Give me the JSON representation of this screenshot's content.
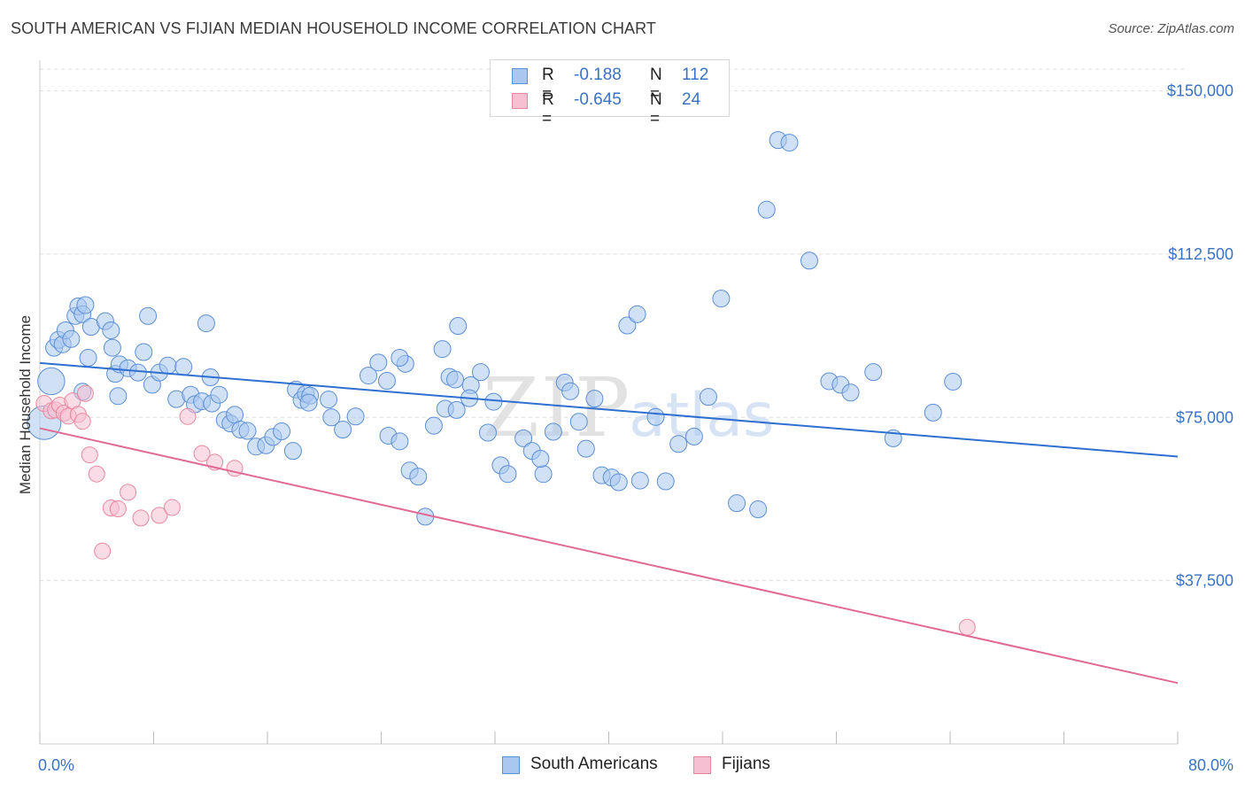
{
  "title": "SOUTH AMERICAN VS FIJIAN MEDIAN HOUSEHOLD INCOME CORRELATION CHART",
  "source": "Source: ZipAtlas.com",
  "legend": {
    "rows": [
      {
        "r_label": "R =",
        "r_value": "-0.188",
        "n_label": "N =",
        "n_value": "112"
      },
      {
        "r_label": "R =",
        "r_value": "-0.645",
        "n_label": "N =",
        "n_value": "24"
      }
    ]
  },
  "bottom_legend": {
    "south": "South Americans",
    "fiji": "Fijians"
  },
  "colors": {
    "south_fill": "#aac8ef",
    "south_stroke": "#5b8fd6",
    "south_line": "#2f6fd0",
    "fiji_fill": "#f6bfd2",
    "fiji_stroke": "#e8879f",
    "fiji_line": "#e06a94",
    "tick_text": "#3a72c4",
    "grid": "#dcdcdc"
  },
  "chart_data": {
    "type": "scatter",
    "xlabel": "",
    "ylabel": "Median Household Income",
    "xlim": [
      0,
      80
    ],
    "ylim": [
      0,
      155000
    ],
    "x_tick_labels": [
      "0.0%",
      "80.0%"
    ],
    "y_ticks": [
      37500,
      75000,
      112500,
      150000
    ],
    "y_tick_labels": [
      "$37,500",
      "$75,000",
      "$112,500",
      "$150,000"
    ],
    "grid": true,
    "legend_position": "top-center",
    "series": [
      {
        "name": "South Americans",
        "trend": {
          "x": [
            0,
            80
          ],
          "y": [
            87500,
            66000
          ]
        },
        "points": [
          [
            0.3,
            73800,
            2.0
          ],
          [
            0.8,
            83300,
            1.6
          ],
          [
            1.0,
            91000,
            1.0
          ],
          [
            1.3,
            92800,
            1.0
          ],
          [
            1.6,
            91800,
            1.0
          ],
          [
            1.8,
            95000,
            1.0
          ],
          [
            2.2,
            93000,
            1.0
          ],
          [
            2.5,
            98300,
            1.0
          ],
          [
            2.7,
            100500,
            1.0
          ],
          [
            3.0,
            98700,
            1.0
          ],
          [
            3.2,
            100800,
            1.0
          ],
          [
            3.6,
            95800,
            1.0
          ],
          [
            3.0,
            80900,
            1.0
          ],
          [
            3.4,
            88700,
            1.0
          ],
          [
            5.3,
            85000,
            1.0
          ],
          [
            5.6,
            87200,
            1.0
          ],
          [
            5.5,
            79900,
            1.0
          ],
          [
            4.6,
            97100,
            1.0
          ],
          [
            5.0,
            95000,
            1.0
          ],
          [
            5.1,
            91000,
            1.0
          ],
          [
            6.2,
            86300,
            1.0
          ],
          [
            6.9,
            85300,
            1.0
          ],
          [
            7.3,
            90000,
            1.0
          ],
          [
            7.6,
            98300,
            1.0
          ],
          [
            7.9,
            82500,
            1.0
          ],
          [
            8.4,
            85300,
            1.0
          ],
          [
            9.0,
            86900,
            1.0
          ],
          [
            9.6,
            79200,
            1.0
          ],
          [
            10.1,
            86600,
            1.0
          ],
          [
            10.6,
            80200,
            1.0
          ],
          [
            10.9,
            78000,
            1.0
          ],
          [
            11.4,
            78700,
            1.0
          ],
          [
            11.7,
            96600,
            1.0
          ],
          [
            12.0,
            84200,
            1.0
          ],
          [
            12.1,
            78200,
            1.0
          ],
          [
            12.6,
            80200,
            1.0
          ],
          [
            13.0,
            74400,
            1.0
          ],
          [
            13.4,
            73600,
            1.0
          ],
          [
            13.7,
            75600,
            1.0
          ],
          [
            14.1,
            72200,
            1.0
          ],
          [
            14.6,
            71900,
            1.0
          ],
          [
            15.2,
            68300,
            1.0
          ],
          [
            15.9,
            68600,
            1.0
          ],
          [
            16.4,
            70500,
            1.0
          ],
          [
            17.0,
            71800,
            1.0
          ],
          [
            17.8,
            67300,
            1.0
          ],
          [
            18.0,
            81400,
            1.0
          ],
          [
            18.4,
            79000,
            1.0
          ],
          [
            18.7,
            80400,
            1.0
          ],
          [
            19.0,
            80000,
            1.0
          ],
          [
            18.9,
            78400,
            1.0
          ],
          [
            20.3,
            79100,
            1.0
          ],
          [
            20.5,
            75000,
            1.0
          ],
          [
            21.3,
            72200,
            1.0
          ],
          [
            22.2,
            75200,
            1.0
          ],
          [
            23.1,
            84600,
            1.0
          ],
          [
            23.8,
            87600,
            1.0
          ],
          [
            24.4,
            83400,
            1.0
          ],
          [
            25.7,
            87300,
            1.0
          ],
          [
            25.3,
            88700,
            1.0
          ],
          [
            24.5,
            70800,
            1.0
          ],
          [
            25.3,
            69500,
            1.0
          ],
          [
            26.0,
            62800,
            1.0
          ],
          [
            26.6,
            61400,
            1.0
          ],
          [
            27.1,
            52200,
            1.0
          ],
          [
            28.3,
            90700,
            1.0
          ],
          [
            28.8,
            84300,
            1.0
          ],
          [
            29.2,
            83700,
            1.0
          ],
          [
            29.4,
            96000,
            1.0
          ],
          [
            27.7,
            73100,
            1.0
          ],
          [
            28.5,
            77000,
            1.0
          ],
          [
            29.3,
            76700,
            1.0
          ],
          [
            30.3,
            82400,
            1.0
          ],
          [
            31.0,
            85400,
            1.0
          ],
          [
            30.2,
            79400,
            1.0
          ],
          [
            31.9,
            78600,
            1.0
          ],
          [
            31.5,
            71500,
            1.0
          ],
          [
            32.4,
            64000,
            1.0
          ],
          [
            32.9,
            62000,
            1.0
          ],
          [
            34.0,
            70200,
            1.0
          ],
          [
            34.6,
            67300,
            1.0
          ],
          [
            35.4,
            62000,
            1.0
          ],
          [
            35.2,
            65500,
            1.0
          ],
          [
            36.1,
            71700,
            1.0
          ],
          [
            36.9,
            83000,
            1.0
          ],
          [
            37.3,
            81000,
            1.0
          ],
          [
            37.9,
            74000,
            1.0
          ],
          [
            38.4,
            67800,
            1.0
          ],
          [
            39.0,
            79300,
            1.0
          ],
          [
            39.5,
            61700,
            1.0
          ],
          [
            40.2,
            61200,
            1.0
          ],
          [
            40.7,
            60100,
            1.0
          ],
          [
            42.2,
            60500,
            1.0
          ],
          [
            41.3,
            96100,
            1.0
          ],
          [
            42.0,
            98700,
            1.0
          ],
          [
            43.3,
            75100,
            1.0
          ],
          [
            44.0,
            60300,
            1.0
          ],
          [
            44.9,
            68900,
            1.0
          ],
          [
            46.0,
            70600,
            1.0
          ],
          [
            47.0,
            79700,
            1.0
          ],
          [
            47.9,
            102300,
            1.0
          ],
          [
            49.0,
            55300,
            1.0
          ],
          [
            50.5,
            53900,
            1.0
          ],
          [
            51.1,
            122700,
            1.0
          ],
          [
            51.9,
            138700,
            1.0
          ],
          [
            52.7,
            138100,
            1.0
          ],
          [
            54.1,
            111000,
            1.0
          ],
          [
            55.5,
            83300,
            1.0
          ],
          [
            56.3,
            82500,
            1.0
          ],
          [
            57.0,
            80700,
            1.0
          ],
          [
            58.6,
            85400,
            1.0
          ],
          [
            60.0,
            70200,
            1.0
          ],
          [
            62.8,
            76100,
            1.0
          ],
          [
            64.2,
            83200,
            1.0
          ]
        ]
      },
      {
        "name": "Fijians",
        "trend": {
          "x": [
            0,
            80
          ],
          "y": [
            72500,
            14000
          ]
        },
        "points": [
          [
            0.3,
            78200,
            1.0
          ],
          [
            0.8,
            76500,
            1.0
          ],
          [
            1.1,
            76700,
            1.0
          ],
          [
            1.4,
            77800,
            1.0
          ],
          [
            1.7,
            76000,
            1.0
          ],
          [
            2.0,
            75300,
            1.0
          ],
          [
            2.3,
            78800,
            1.0
          ],
          [
            2.7,
            75700,
            1.0
          ],
          [
            3.0,
            74100,
            1.0
          ],
          [
            3.2,
            80500,
            1.0
          ],
          [
            3.5,
            66400,
            1.0
          ],
          [
            4.0,
            62000,
            1.0
          ],
          [
            4.4,
            44300,
            1.0
          ],
          [
            5.0,
            54200,
            1.0
          ],
          [
            5.5,
            54000,
            1.0
          ],
          [
            6.2,
            57800,
            1.0
          ],
          [
            7.1,
            51900,
            1.0
          ],
          [
            8.4,
            52500,
            1.0
          ],
          [
            9.3,
            54300,
            1.0
          ],
          [
            10.4,
            75200,
            1.0
          ],
          [
            11.4,
            66700,
            1.0
          ],
          [
            12.3,
            64700,
            1.0
          ],
          [
            13.7,
            63300,
            1.0
          ],
          [
            65.2,
            26800,
            1.0
          ]
        ]
      }
    ]
  }
}
